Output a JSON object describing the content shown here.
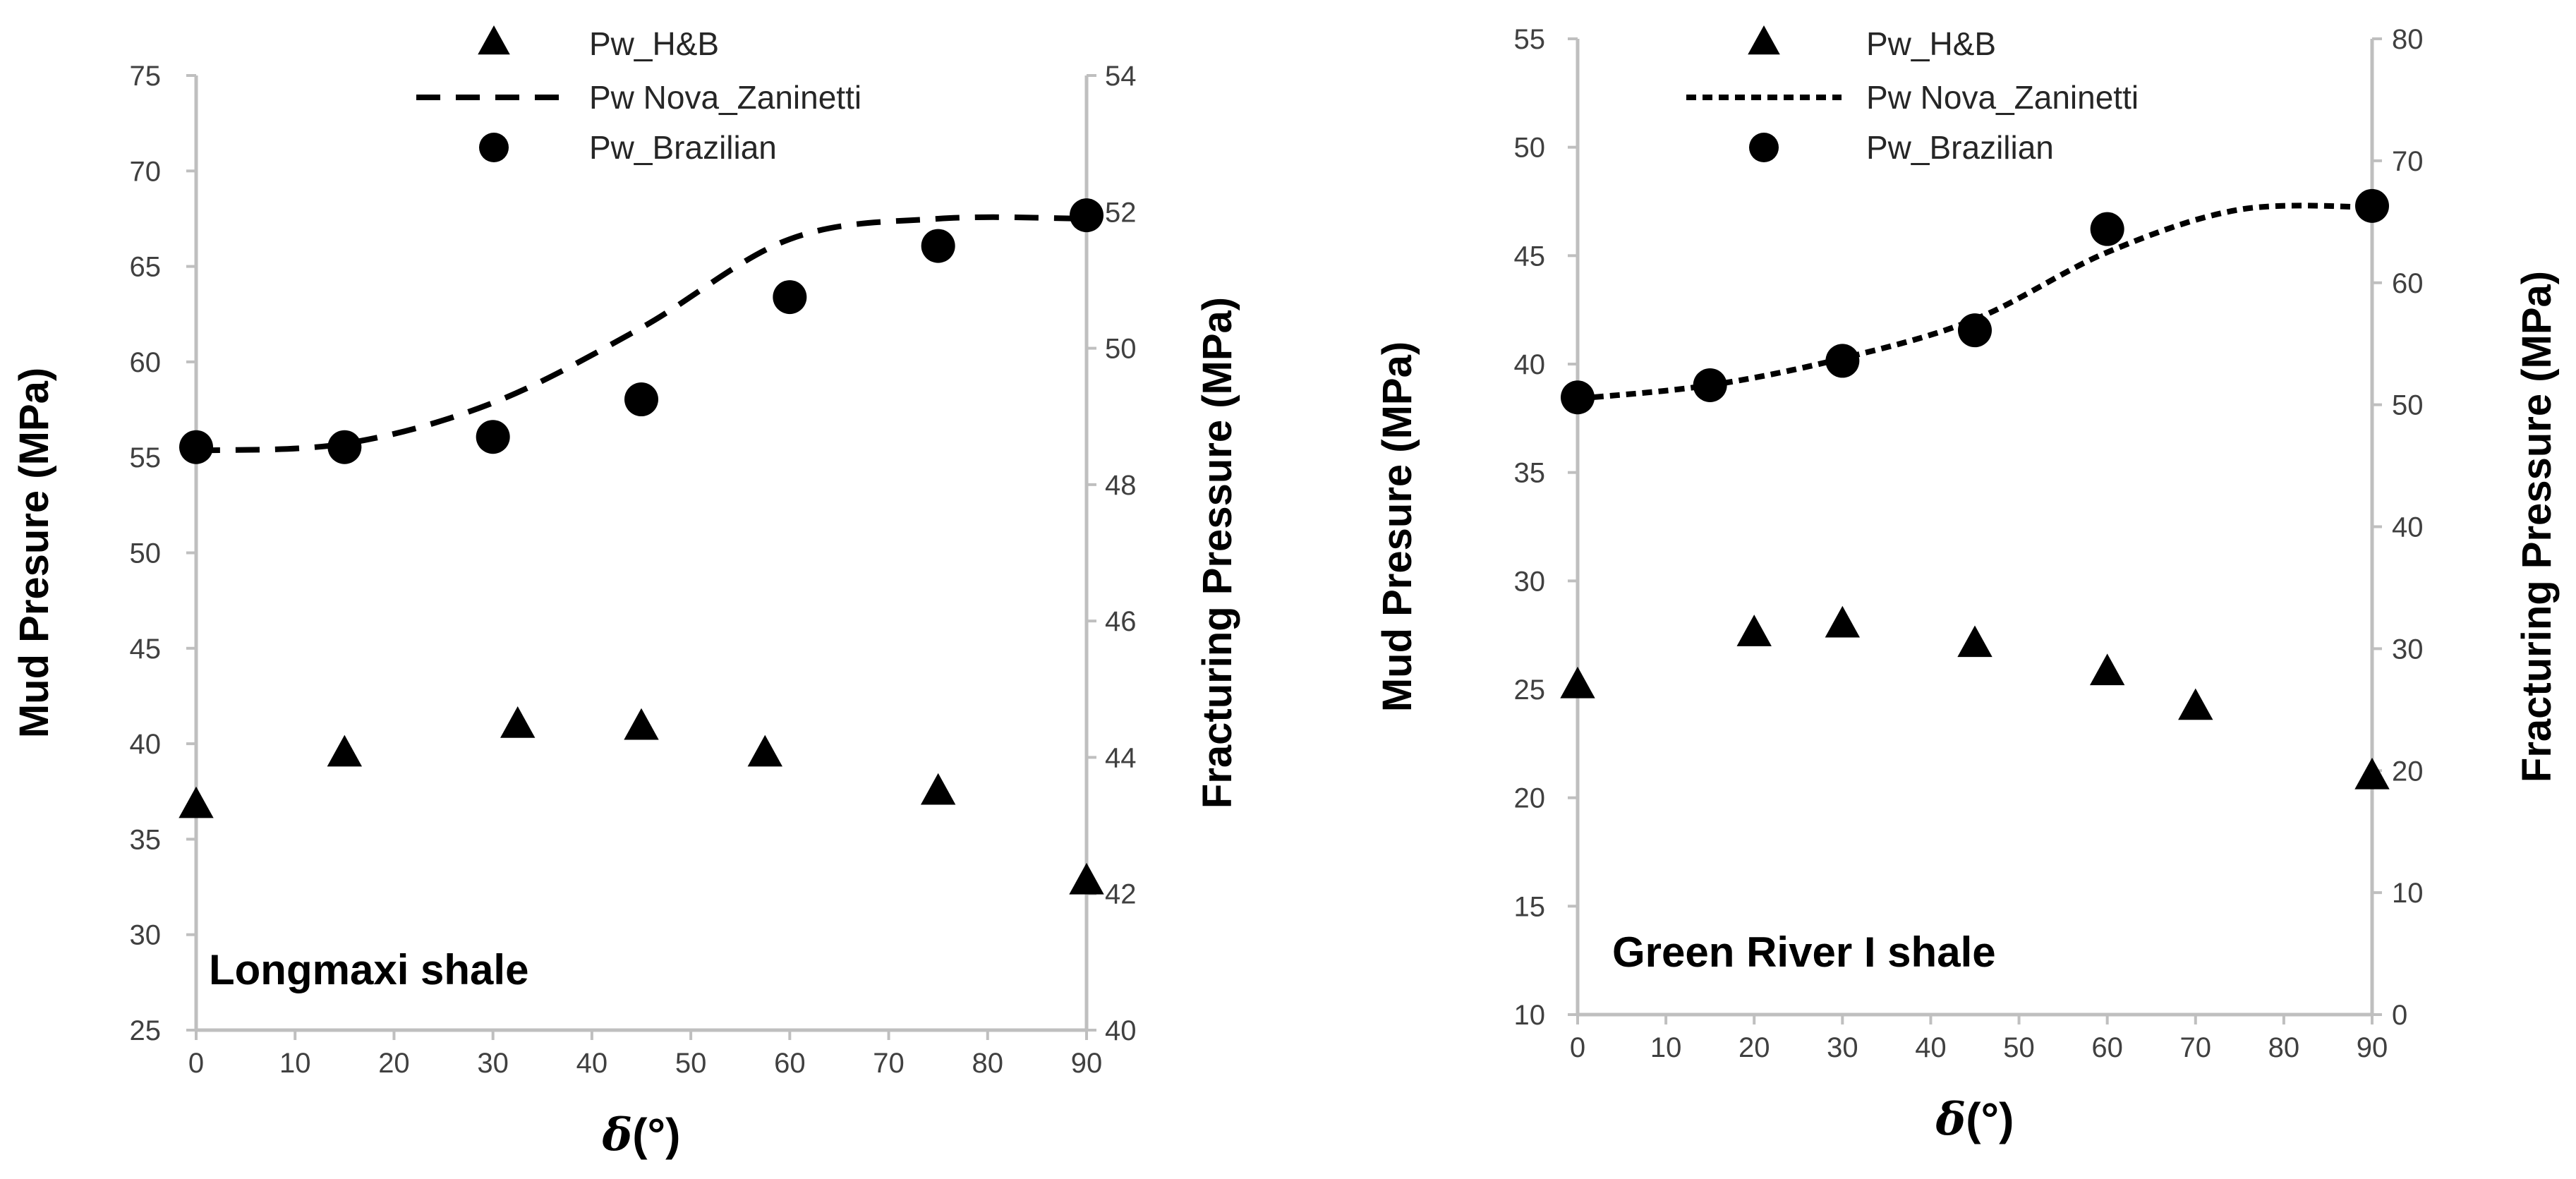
{
  "chart_data": [
    {
      "type": "scatter",
      "panel_label": "Longmaxi shale",
      "xlabel_symbol": "δ",
      "xlabel_unit": "(°)",
      "ylabel_left": "Mud Presure (MPa)",
      "ylabel_right": "Fracturing Pressure (MPa)",
      "xlim": [
        0,
        90
      ],
      "ylim_left": [
        25,
        75
      ],
      "ylim_right": [
        40,
        54
      ],
      "x_ticks": [
        0,
        10,
        20,
        30,
        40,
        50,
        60,
        70,
        80,
        90
      ],
      "y_left_ticks": [
        25,
        30,
        35,
        40,
        45,
        50,
        55,
        60,
        65,
        70,
        75
      ],
      "y_right_ticks": [
        40,
        42,
        44,
        46,
        48,
        50,
        52,
        54
      ],
      "legend": [
        "Pw_H&B",
        "Pw Nova_Zaninetti",
        "Pw_Brazilian"
      ],
      "series": [
        {
          "name": "Pw_H&B",
          "marker": "triangle",
          "axis": "left",
          "x": [
            0,
            15,
            32.5,
            45,
            57.5,
            75,
            90
          ],
          "y": [
            36.8,
            39.5,
            41.0,
            40.9,
            39.5,
            37.5,
            32.8
          ]
        },
        {
          "name": "Pw Nova_Zaninetti",
          "marker": "dashed-line",
          "axis": "right",
          "x": [
            0,
            15,
            30,
            45,
            60,
            75,
            90
          ],
          "y": [
            48.5,
            48.6,
            49.2,
            50.3,
            51.6,
            51.9,
            51.9
          ]
        },
        {
          "name": "Pw_Brazilian",
          "marker": "circle",
          "axis": "right",
          "x": [
            0,
            15,
            30,
            45,
            60,
            75,
            90
          ],
          "y": [
            48.55,
            48.55,
            48.7,
            49.25,
            50.75,
            51.5,
            51.95
          ]
        }
      ]
    },
    {
      "type": "scatter",
      "panel_label": "Green River I shale",
      "xlabel_symbol": "δ",
      "xlabel_unit": "(°)",
      "ylabel_left": "Mud Presure (MPa)",
      "ylabel_right": "Fracturing Pressure (MPa)",
      "xlim": [
        0,
        90
      ],
      "ylim_left": [
        10,
        55
      ],
      "ylim_right": [
        0,
        80
      ],
      "x_ticks": [
        0,
        10,
        20,
        30,
        40,
        50,
        60,
        70,
        80,
        90
      ],
      "y_left_ticks": [
        10,
        15,
        20,
        25,
        30,
        35,
        40,
        45,
        50,
        55
      ],
      "y_right_ticks": [
        0,
        10,
        20,
        30,
        40,
        50,
        60,
        70,
        80
      ],
      "legend": [
        "Pw_H&B",
        "Pw Nova_Zaninetti",
        "Pw_Brazilian"
      ],
      "series": [
        {
          "name": "Pw_H&B",
          "marker": "triangle",
          "axis": "left",
          "x": [
            0,
            20,
            30,
            45,
            60,
            70,
            90
          ],
          "y": [
            25.2,
            27.6,
            28.0,
            27.1,
            25.8,
            24.2,
            21.0
          ]
        },
        {
          "name": "Pw Nova_Zaninetti",
          "marker": "dotted-line",
          "axis": "right",
          "x": [
            0,
            15,
            30,
            45,
            60,
            75,
            90
          ],
          "y": [
            50.5,
            51.6,
            53.8,
            57.0,
            62.5,
            66.0,
            66.2
          ]
        },
        {
          "name": "Pw_Brazilian",
          "marker": "circle",
          "axis": "right",
          "x": [
            0,
            15,
            30,
            45,
            60,
            90
          ],
          "y": [
            50.6,
            51.6,
            53.6,
            56.1,
            64.4,
            66.3
          ]
        }
      ]
    }
  ]
}
